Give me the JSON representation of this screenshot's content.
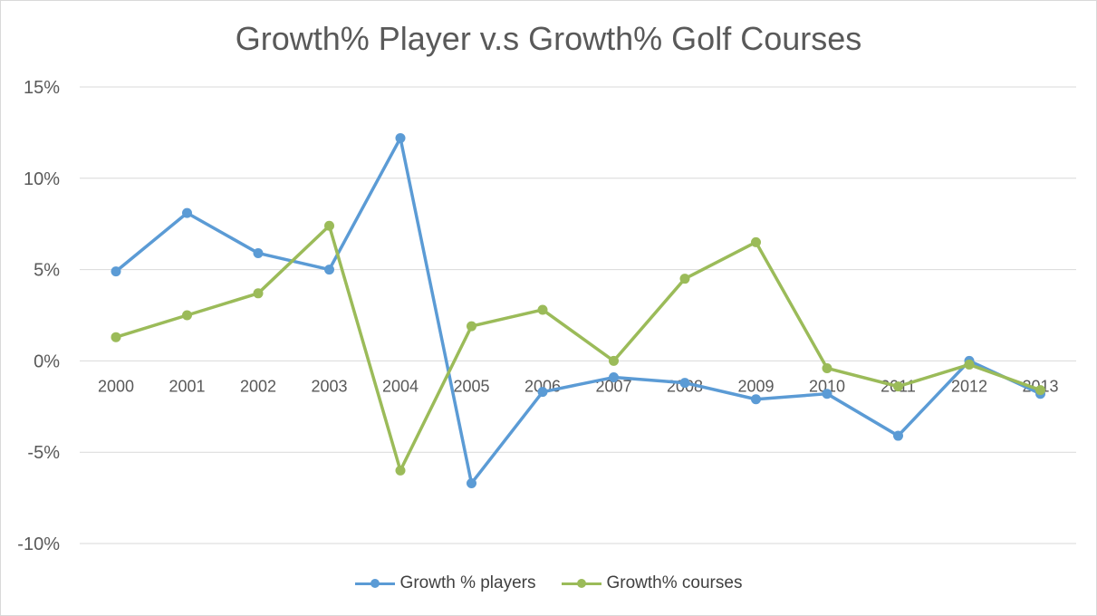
{
  "chart_data": {
    "type": "line",
    "title": "Growth% Player v.s Growth% Golf Courses",
    "categories": [
      "2000",
      "2001",
      "2002",
      "2003",
      "2004",
      "2005",
      "2006",
      "2007",
      "2008",
      "2009",
      "2010",
      "2011",
      "2012",
      "2013"
    ],
    "series": [
      {
        "name": "Growth % players",
        "color": "#5b9bd5",
        "values": [
          4.9,
          8.1,
          5.9,
          5.0,
          12.2,
          -6.7,
          -1.7,
          -0.9,
          -1.2,
          -2.1,
          -1.8,
          -4.1,
          0.0,
          -1.8
        ]
      },
      {
        "name": "Growth% courses",
        "color": "#9bbb59",
        "values": [
          1.3,
          2.5,
          3.7,
          7.4,
          -6.0,
          1.9,
          2.8,
          0.0,
          4.5,
          6.5,
          -0.4,
          -1.4,
          -0.2,
          -1.6
        ]
      }
    ],
    "yticks": [
      "15%",
      "10%",
      "5%",
      "0%",
      "-5%",
      "-10%"
    ],
    "ylim": [
      -10,
      15
    ],
    "grid": true,
    "legend": "bottom"
  }
}
